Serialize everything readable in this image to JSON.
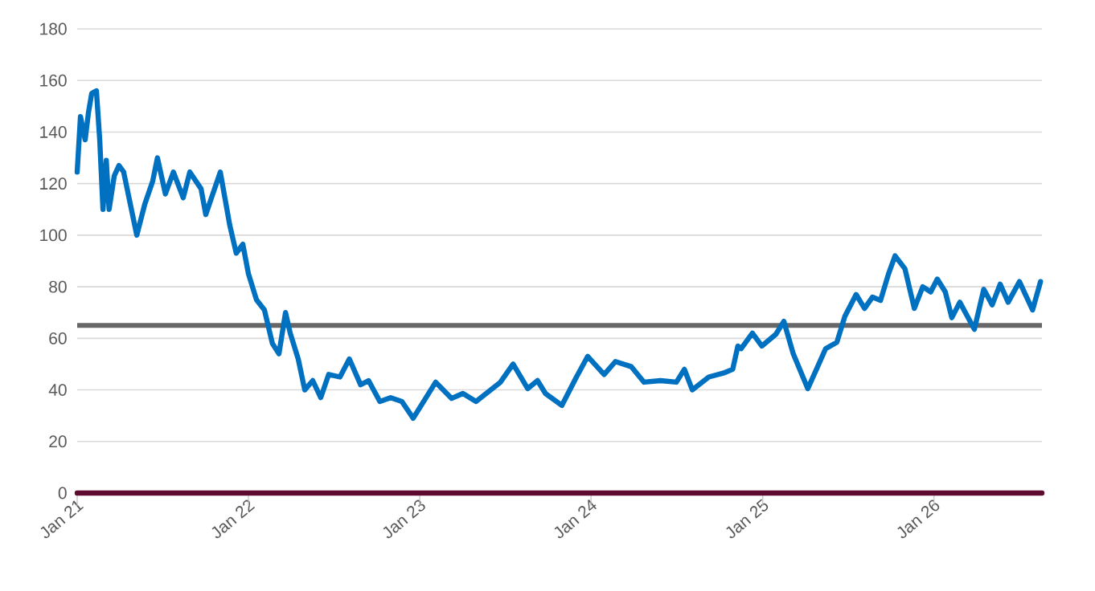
{
  "chart_data": {
    "type": "line",
    "x": [
      "2021-01-01",
      "2021-01-08",
      "2021-01-18",
      "2021-01-25",
      "2021-02-01",
      "2021-02-11",
      "2021-02-18",
      "2021-02-25",
      "2021-03-04",
      "2021-03-10",
      "2021-03-21",
      "2021-03-31",
      "2021-04-10",
      "2021-05-08",
      "2021-05-25",
      "2021-06-11",
      "2021-06-21",
      "2021-07-08",
      "2021-07-25",
      "2021-08-15",
      "2021-08-29",
      "2021-09-22",
      "2021-10-02",
      "2021-11-02",
      "2021-11-22",
      "2021-12-06",
      "2021-12-20",
      "2022-01-01",
      "2022-01-18",
      "2022-02-04",
      "2022-02-21",
      "2022-03-07",
      "2022-03-21",
      "2022-03-31",
      "2022-04-17",
      "2022-05-01",
      "2022-05-18",
      "2022-06-04",
      "2022-06-21",
      "2022-07-15",
      "2022-08-04",
      "2022-08-28",
      "2022-09-14",
      "2022-10-08",
      "2022-10-31",
      "2022-11-24",
      "2022-12-18",
      "2023-02-04",
      "2023-03-10",
      "2023-04-03",
      "2023-05-01",
      "2023-06-22",
      "2023-07-19",
      "2023-08-19",
      "2023-09-09",
      "2023-09-26",
      "2023-10-31",
      "2023-12-01",
      "2023-12-25",
      "2024-01-29",
      "2024-02-22",
      "2024-03-27",
      "2024-04-23",
      "2024-05-28",
      "2024-07-01",
      "2024-07-18",
      "2024-08-04",
      "2024-09-08",
      "2024-10-12",
      "2024-10-29",
      "2024-11-09",
      "2024-11-16",
      "2024-12-10",
      "2024-12-30",
      "2025-01-29",
      "2025-02-15",
      "2025-03-07",
      "2025-04-07",
      "2025-04-28",
      "2025-05-15",
      "2025-06-08",
      "2025-06-25",
      "2025-07-19",
      "2025-08-06",
      "2025-08-23",
      "2025-09-09",
      "2025-09-26",
      "2025-10-10",
      "2025-10-31",
      "2025-11-20",
      "2025-12-08",
      "2025-12-25",
      "2026-01-08",
      "2026-01-25",
      "2026-02-08",
      "2026-02-25",
      "2026-03-28",
      "2026-04-17",
      "2026-05-05",
      "2026-05-22",
      "2026-06-08",
      "2026-07-02",
      "2026-07-30",
      "2026-08-16"
    ],
    "series": [
      {
        "type": "line",
        "color": "#5c0a2e",
        "x": [
          "2021-01-01",
          "2026-08-19"
        ],
        "values": [
          0,
          0
        ]
      },
      {
        "color": "#0070c0",
        "values": [
          124.5,
          146,
          137,
          147.5,
          155,
          156,
          137,
          110,
          129,
          110,
          123,
          127,
          124.5,
          100,
          112,
          121,
          130,
          116,
          124.5,
          114.5,
          124.5,
          118,
          108,
          124.5,
          104,
          93,
          96.5,
          85,
          75,
          71,
          58,
          54,
          70,
          62,
          52,
          40,
          43.6,
          37,
          46,
          45,
          52,
          42,
          43.6,
          35.5,
          37,
          35.5,
          29,
          43,
          36.7,
          38.6,
          35.5,
          43,
          50,
          40.5,
          43.6,
          38.6,
          34,
          45,
          53,
          46,
          51,
          49,
          43,
          43.6,
          43,
          48,
          40,
          45,
          46.7,
          48,
          57,
          56,
          62,
          57,
          61.6,
          66.6,
          54,
          40.5,
          49,
          56,
          58.5,
          68.5,
          77,
          71.6,
          76,
          74.7,
          85,
          92,
          87,
          71.6,
          80,
          78,
          83,
          78,
          68,
          74,
          63.5,
          79,
          73,
          81,
          74,
          82,
          71,
          82
        ]
      }
    ],
    "xlim": [
      "2021-01-01",
      "2026-08-19"
    ],
    "xticks": [
      {
        "value": "2021-01-01",
        "label": "Jan 21"
      },
      {
        "value": "2022-01-01",
        "label": "Jan 22"
      },
      {
        "value": "2023-01-01",
        "label": "Jan 23"
      },
      {
        "value": "2024-01-01",
        "label": "Jan 24"
      },
      {
        "value": "2025-01-01",
        "label": "Jan 25"
      },
      {
        "value": "2026-01-01",
        "label": "Jan 26"
      }
    ],
    "ylim": [
      0,
      180
    ],
    "yticks": [
      0,
      20,
      40,
      60,
      80,
      100,
      120,
      140,
      160,
      180
    ],
    "grid": "y",
    "marker": "none",
    "line_style": "solid",
    "ref_lines": [
      {
        "axis": "y",
        "value": 65,
        "color": "#676767"
      }
    ]
  }
}
